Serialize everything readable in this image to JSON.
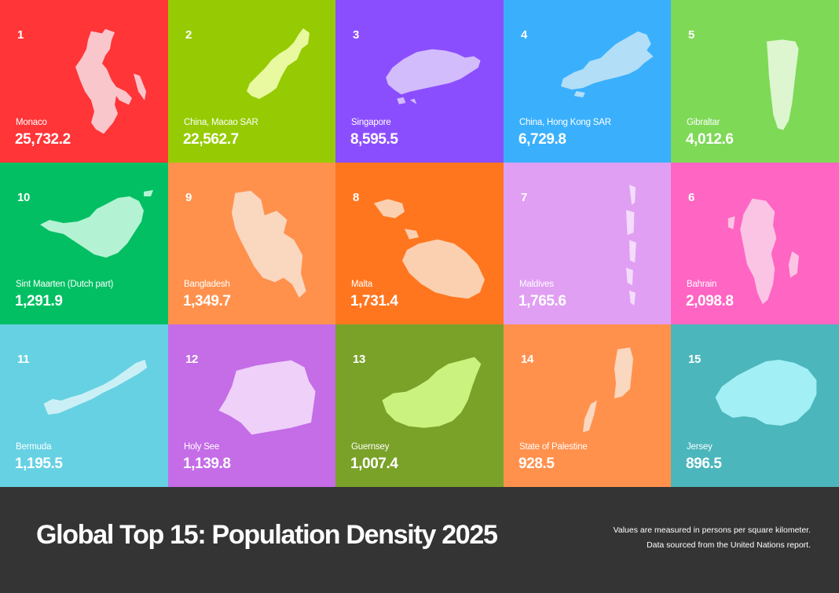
{
  "title": "Global Top 15: Population Density 2025",
  "notes": [
    "Values are measured in persons per square kilometer.",
    "Data sourced from the United Nations report."
  ],
  "chart_data": {
    "type": "table",
    "title": "Global Top 15: Population Density 2025",
    "unit": "persons per square kilometer",
    "categories": [
      "Monaco",
      "China, Macao SAR",
      "Singapore",
      "China, Hong Kong SAR",
      "Gibraltar",
      "Bahrain",
      "Maldives",
      "Malta",
      "Bangladesh",
      "Sint Maarten (Dutch part)",
      "Bermuda",
      "Holy See",
      "Guernsey",
      "State of Palestine",
      "Jersey"
    ],
    "values": [
      25732.2,
      22562.7,
      8595.5,
      6729.8,
      4012.6,
      2098.8,
      1765.6,
      1731.4,
      1349.7,
      1291.9,
      1195.5,
      1139.8,
      1007.4,
      928.5,
      896.5
    ],
    "items": [
      {
        "rank": "1",
        "name": "Monaco",
        "value": "25,732.2",
        "color": "#FF3538",
        "shape_color": "#F9C6CC",
        "icon": "monaco-map-icon"
      },
      {
        "rank": "2",
        "name": "China, Macao SAR",
        "value": "22,562.7",
        "color": "#96CB03",
        "shape_color": "#E8F9A0",
        "icon": "macao-map-icon"
      },
      {
        "rank": "3",
        "name": "Singapore",
        "value": "8,595.5",
        "color": "#8B4EFF",
        "shape_color": "#D2BCFC",
        "icon": "singapore-map-icon"
      },
      {
        "rank": "4",
        "name": "China, Hong Kong SAR",
        "value": "6,729.8",
        "color": "#3AB0FD",
        "shape_color": "#B3DEF8",
        "icon": "hong-kong-map-icon"
      },
      {
        "rank": "5",
        "name": "Gibraltar",
        "value": "4,012.6",
        "color": "#7ED957",
        "shape_color": "#DDF6CF",
        "icon": "gibraltar-map-icon"
      },
      {
        "rank": "6",
        "name": "Bahrain",
        "value": "2,098.8",
        "color": "#FF65C3",
        "shape_color": "#FBC3E4",
        "icon": "bahrain-map-icon"
      },
      {
        "rank": "7",
        "name": "Maldives",
        "value": "1,765.6",
        "color": "#E09FF3",
        "shape_color": "#F4DCFB",
        "icon": "maldives-map-icon"
      },
      {
        "rank": "8",
        "name": "Malta",
        "value": "1,731.4",
        "color": "#FF761F",
        "shape_color": "#FBD0B0",
        "icon": "malta-map-icon"
      },
      {
        "rank": "9",
        "name": "Bangladesh",
        "value": "1,349.7",
        "color": "#FF914D",
        "shape_color": "#FAD7BF",
        "icon": "bangladesh-map-icon"
      },
      {
        "rank": "10",
        "name": "Sint Maarten (Dutch part)",
        "value": "1,291.9",
        "color": "#01BF62",
        "shape_color": "#B3F3D3",
        "icon": "sint-maarten-map-icon"
      },
      {
        "rank": "11",
        "name": "Bermuda",
        "value": "1,195.5",
        "color": "#66D1E3",
        "shape_color": "#CAF0F6",
        "icon": "bermuda-map-icon"
      },
      {
        "rank": "12",
        "name": "Holy See",
        "value": "1,139.8",
        "color": "#C56CE7",
        "shape_color": "#EED0F9",
        "icon": "holy-see-map-icon"
      },
      {
        "rank": "13",
        "name": "Guernsey",
        "value": "1,007.4",
        "color": "#7AA229",
        "shape_color": "#C9F27F",
        "icon": "guernsey-map-icon"
      },
      {
        "rank": "14",
        "name": "State of Palestine",
        "value": "928.5",
        "color": "#FF914D",
        "shape_color": "#FAD7BF",
        "icon": "palestine-map-icon"
      },
      {
        "rank": "15",
        "name": "Jersey",
        "value": "896.5",
        "color": "#4BB6BB",
        "shape_color": "#A2EFF5",
        "icon": "jersey-map-icon"
      }
    ]
  }
}
